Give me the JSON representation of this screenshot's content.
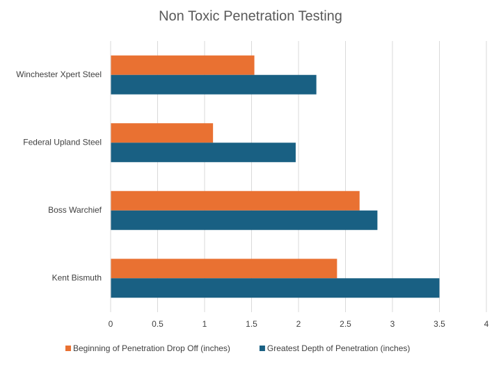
{
  "chart_data": {
    "type": "hbar",
    "title": "Non Toxic Penetration Testing",
    "categories": [
      "Winchester Xpert Steel",
      "Federal Upland Steel",
      "Boss Warchief",
      "Kent Bismuth"
    ],
    "series": [
      {
        "name": "Beginning of Penetration Drop Off (inches)",
        "color": "#e97132",
        "values": [
          1.53,
          1.09,
          2.65,
          2.41
        ]
      },
      {
        "name": "Greatest Depth of Penetration (inches)",
        "color": "#196083",
        "values": [
          2.19,
          1.97,
          2.84,
          3.5
        ]
      }
    ],
    "xlim": [
      0,
      4
    ],
    "xticks": [
      0,
      0.5,
      1,
      1.5,
      2,
      2.5,
      3,
      3.5,
      4
    ],
    "grid": true
  }
}
